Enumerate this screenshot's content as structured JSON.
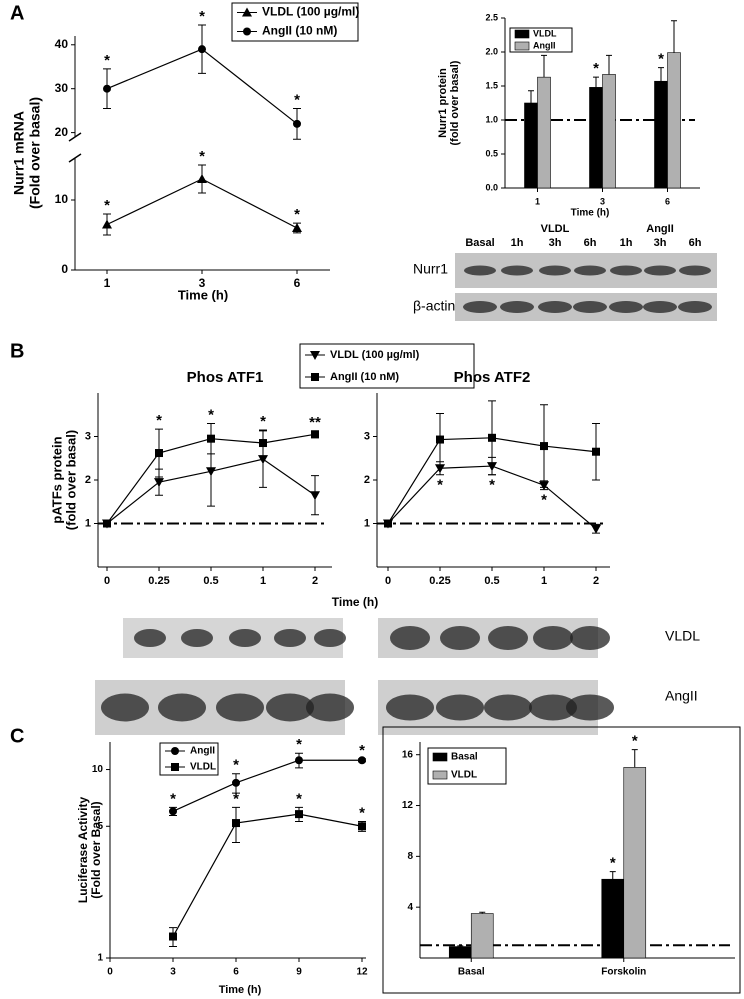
{
  "panel_labels": [
    "A",
    "B",
    "C"
  ],
  "chart_data": [
    {
      "type": "line",
      "x_label": "Time (h)",
      "y_label": [
        "Nurr1 mRNA",
        "(Fold over basal)"
      ],
      "categories": [
        "1",
        "3",
        "6"
      ],
      "ylim": [
        0,
        42
      ],
      "ybreak": [
        16,
        19
      ],
      "yticks": [
        0,
        10,
        20,
        30,
        40
      ],
      "legend": true,
      "series": [
        {
          "name": "VLDL (100 µg/ml)",
          "color": "#000000",
          "marker": "triangle",
          "values": [
            6.5,
            13,
            6
          ],
          "errors": [
            1.5,
            2,
            0.7
          ],
          "significance": [
            "*",
            "*",
            "*"
          ]
        },
        {
          "name": "AngII (10 nM)",
          "color": "#000000",
          "marker": "circle",
          "values": [
            30,
            39,
            22
          ],
          "errors": [
            4.5,
            5.5,
            3.5
          ],
          "significance": [
            "*",
            "*",
            "*"
          ]
        }
      ]
    },
    {
      "type": "bar",
      "x_label": "Time (h)",
      "y_label": [
        "Nurr1 protein",
        "(fold over basal)"
      ],
      "categories": [
        "1",
        "3",
        "6"
      ],
      "ylim": [
        0,
        2.5
      ],
      "yticks": [
        {
          "value": 0,
          "label": "0.0"
        },
        0.5,
        {
          "value": 1,
          "label": "1.0"
        },
        1.5,
        {
          "value": 2,
          "label": "2.0"
        },
        2.5
      ],
      "reference_line": 1,
      "legend": true,
      "series": [
        {
          "name": "VLDL",
          "color": "#000000",
          "values": [
            1.25,
            1.48,
            1.57
          ],
          "errors": [
            0.18,
            0.15,
            0.2
          ],
          "significance": [
            null,
            "*",
            "*"
          ]
        },
        {
          "name": "AngII",
          "color": "#b0b0b0",
          "values": [
            1.63,
            1.67,
            1.99
          ],
          "errors": [
            0.32,
            0.28,
            0.47
          ]
        }
      ]
    },
    {
      "type": "line",
      "title": "Phos ATF1",
      "x_label": "Time (h)",
      "y_label": [
        "pATFs protein",
        "(fold over basal)"
      ],
      "categories": [
        "0",
        "0.25",
        "0.5",
        "1",
        "2"
      ],
      "ylim": [
        0,
        4
      ],
      "yticks": [
        1,
        2,
        3
      ],
      "reference_line": 1,
      "legend": true,
      "series": [
        {
          "name": "VLDL (100 µg/ml)",
          "color": "#000000",
          "marker": "triangle-down",
          "values": [
            1,
            1.95,
            2.2,
            2.48,
            1.65
          ],
          "errors": [
            0,
            0.3,
            0.8,
            0.65,
            0.45
          ]
        },
        {
          "name": "AngII (10 nM)",
          "color": "#000000",
          "marker": "square",
          "values": [
            1,
            2.62,
            2.95,
            2.85,
            3.05
          ],
          "errors": [
            0,
            0.55,
            0.35,
            0.3,
            0.08
          ],
          "significance": [
            null,
            "*",
            "*",
            "*",
            "**"
          ]
        }
      ]
    },
    {
      "type": "line",
      "title": "Phos ATF2",
      "categories": [
        "0",
        "0.25",
        "0.5",
        "1",
        "2"
      ],
      "ylim": [
        0,
        4
      ],
      "yticks": [
        1,
        2,
        3
      ],
      "reference_line": 1,
      "series": [
        {
          "color": "#000000",
          "marker": "triangle-down",
          "values": [
            1,
            2.27,
            2.32,
            1.88,
            0.88
          ],
          "errors": [
            0,
            0.15,
            0.2,
            0.1,
            0.1
          ],
          "significance": [
            null,
            "*",
            "*",
            "*",
            null
          ],
          "significance_position": "below"
        },
        {
          "color": "#000000",
          "marker": "square",
          "values": [
            1,
            2.93,
            2.97,
            2.78,
            2.65
          ],
          "errors": [
            0,
            0.6,
            0.85,
            0.95,
            0.65
          ]
        }
      ]
    },
    {
      "type": "line",
      "x_label": "Time (h)",
      "y_label": [
        "Luciferase Activity",
        "(Fold over Basal)"
      ],
      "x": [
        3,
        6,
        9,
        12
      ],
      "xlim": [
        0,
        12
      ],
      "xticks": [
        0,
        3,
        6,
        9,
        12
      ],
      "ylim": [
        1,
        14
      ],
      "yticks": [
        1,
        5,
        10
      ],
      "log_y": true,
      "legend": true,
      "series": [
        {
          "name": "AngII",
          "color": "#000000",
          "marker": "circle",
          "values": [
            6,
            8.5,
            11.2,
            11.2
          ],
          "errors": [
            0.3,
            1,
            1,
            0.2
          ],
          "significance": [
            "*",
            "*",
            "*",
            "*"
          ]
        },
        {
          "name": "VLDL",
          "color": "#000000",
          "marker": "square",
          "values": [
            1.3,
            5.2,
            5.8,
            5
          ],
          "errors": [
            0.15,
            1.1,
            0.5,
            0.3
          ],
          "significance": [
            null,
            "*",
            "*",
            "*"
          ]
        }
      ]
    },
    {
      "type": "bar",
      "categories": [
        "Basal",
        "Forskolin"
      ],
      "ylim": [
        0,
        17
      ],
      "yticks": [
        4,
        8,
        12,
        16
      ],
      "reference_line": 1,
      "legend": true,
      "series": [
        {
          "name": "Basal",
          "color": "#000000",
          "values": [
            0.9,
            6.2
          ],
          "errors": [
            0.05,
            0.6
          ],
          "significance": [
            null,
            "*"
          ]
        },
        {
          "name": "VLDL",
          "color": "#b0b0b0",
          "values": [
            3.5,
            15
          ],
          "errors": [
            0.1,
            1.4
          ],
          "significance": [
            null,
            "*"
          ]
        }
      ]
    }
  ],
  "blot_a": {
    "group_labels": [
      "VLDL",
      "AngII"
    ],
    "lane_labels": [
      "Basal",
      "1h",
      "3h",
      "6h",
      "1h",
      "3h",
      "6h"
    ],
    "row_labels": [
      "Nurr1",
      "β-actin"
    ]
  },
  "blot_b": {
    "row_labels": [
      "VLDL",
      "AngII"
    ]
  }
}
